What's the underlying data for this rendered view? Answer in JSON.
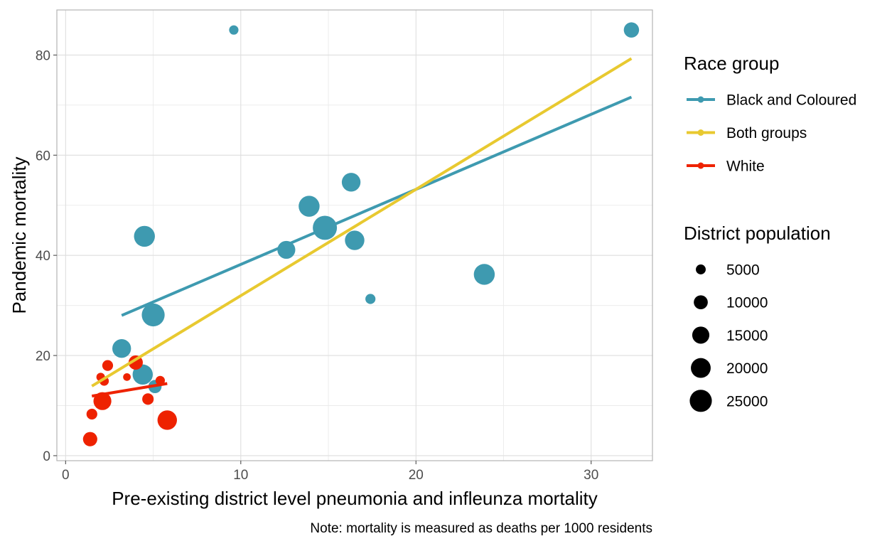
{
  "chart_data": {
    "type": "scatter",
    "xlabel": "Pre-existing district level pneumonia and infleunza mortality",
    "ylabel": "Pandemic mortality",
    "caption": "Note: mortality is measured as deaths per 1000 residents",
    "xlim": [
      -0.5,
      33.5
    ],
    "ylim": [
      -1,
      89
    ],
    "x_ticks": [
      0,
      10,
      20,
      30
    ],
    "y_ticks": [
      0,
      20,
      40,
      60,
      80
    ],
    "grid": true,
    "legend_position": "right",
    "color_legend": {
      "title": "Race group",
      "entries": [
        {
          "label": "Black and Coloured",
          "color": "#3e9ab0"
        },
        {
          "label": "Both groups",
          "color": "#e8c930"
        },
        {
          "label": "White",
          "color": "#ee2200"
        }
      ]
    },
    "size_legend": {
      "title": "District population",
      "entries": [
        {
          "label": "5000",
          "value": 5000
        },
        {
          "label": "10000",
          "value": 10000
        },
        {
          "label": "15000",
          "value": 15000
        },
        {
          "label": "20000",
          "value": 20000
        },
        {
          "label": "25000",
          "value": 25000
        }
      ]
    },
    "size_range": {
      "min_value": 0,
      "max_value": 25000
    },
    "series": [
      {
        "name": "Black and Coloured",
        "color": "#3e9ab0",
        "points": [
          {
            "x": 9.6,
            "y": 85,
            "size": 3000
          },
          {
            "x": 32.3,
            "y": 85,
            "size": 8000
          },
          {
            "x": 16.3,
            "y": 54.6,
            "size": 12000
          },
          {
            "x": 13.9,
            "y": 49.8,
            "size": 15000
          },
          {
            "x": 14.8,
            "y": 45.5,
            "size": 20000
          },
          {
            "x": 4.5,
            "y": 43.8,
            "size": 15000
          },
          {
            "x": 16.5,
            "y": 43.0,
            "size": 13000
          },
          {
            "x": 12.6,
            "y": 41.1,
            "size": 11000
          },
          {
            "x": 23.9,
            "y": 36.2,
            "size": 15000
          },
          {
            "x": 17.4,
            "y": 31.3,
            "size": 3500
          },
          {
            "x": 5.0,
            "y": 28.1,
            "size": 18000
          },
          {
            "x": 3.2,
            "y": 21.4,
            "size": 12000
          },
          {
            "x": 4.4,
            "y": 16.2,
            "size": 14000
          },
          {
            "x": 5.1,
            "y": 13.8,
            "size": 6000
          }
        ],
        "fit": {
          "x": [
            3.2,
            32.3
          ],
          "y": [
            28.0,
            71.6
          ]
        }
      },
      {
        "name": "Both groups",
        "color": "#e8c930",
        "points": [],
        "fit": {
          "x": [
            1.5,
            32.3
          ],
          "y": [
            13.9,
            79.3
          ]
        }
      },
      {
        "name": "White",
        "color": "#ee2200",
        "points": [
          {
            "x": 1.4,
            "y": 3.3,
            "size": 7000
          },
          {
            "x": 1.5,
            "y": 8.3,
            "size": 4000
          },
          {
            "x": 2.1,
            "y": 10.9,
            "size": 11000
          },
          {
            "x": 2.0,
            "y": 15.7,
            "size": 2500
          },
          {
            "x": 2.2,
            "y": 14.9,
            "size": 3000
          },
          {
            "x": 2.4,
            "y": 18.0,
            "size": 4000
          },
          {
            "x": 3.5,
            "y": 15.7,
            "size": 2000
          },
          {
            "x": 4.0,
            "y": 18.6,
            "size": 7000
          },
          {
            "x": 4.7,
            "y": 11.3,
            "size": 4500
          },
          {
            "x": 5.4,
            "y": 15.0,
            "size": 3000
          },
          {
            "x": 5.8,
            "y": 7.1,
            "size": 13000
          }
        ],
        "fit": {
          "x": [
            1.5,
            5.8
          ],
          "y": [
            11.9,
            14.4
          ]
        }
      }
    ]
  }
}
